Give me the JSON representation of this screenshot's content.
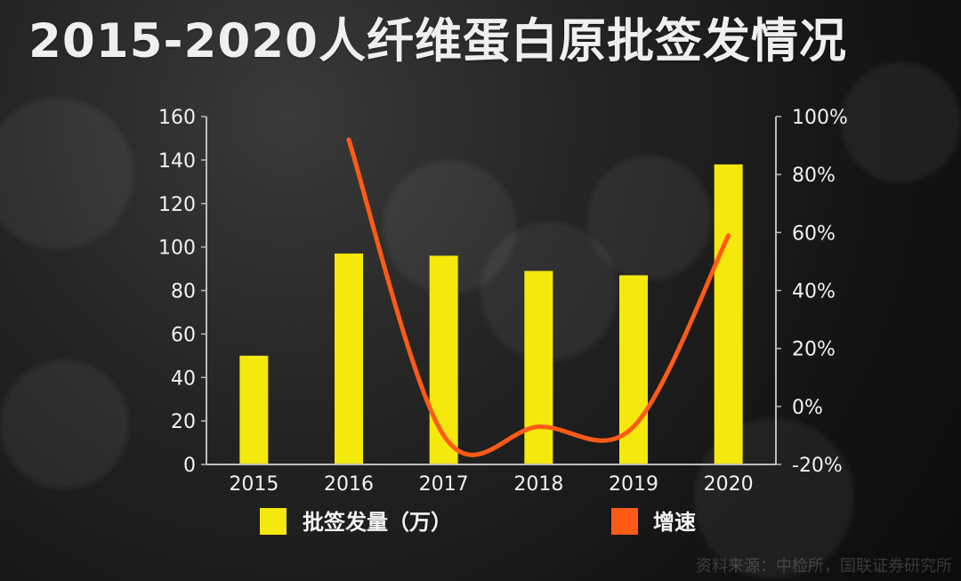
{
  "chart_data": {
    "type": "bar",
    "title": "2015-2020人纤维蛋白原批签发情况",
    "categories": [
      "2015",
      "2016",
      "2017",
      "2018",
      "2019",
      "2020"
    ],
    "left_axis": {
      "ylim": [
        0,
        160
      ],
      "ticks": [
        "0",
        "20",
        "40",
        "60",
        "80",
        "100",
        "120",
        "140",
        "160"
      ]
    },
    "right_axis": {
      "ylim": [
        -20,
        100
      ],
      "ticks": [
        "-20%",
        "0%",
        "20%",
        "40%",
        "60%",
        "80%",
        "100%"
      ]
    },
    "series": [
      {
        "name": "批签发量（万）",
        "type": "bar",
        "axis": "left",
        "color": "#f4e80d",
        "values": [
          50,
          97,
          96,
          89,
          87,
          138
        ]
      },
      {
        "name": "增速",
        "type": "line",
        "axis": "right",
        "color": "#ff5b17",
        "values": [
          null,
          92,
          -10,
          -7,
          -7,
          59
        ]
      }
    ],
    "grid": false,
    "legend_position": "bottom",
    "source": "资料来源：中检所，国联证券研究所"
  }
}
